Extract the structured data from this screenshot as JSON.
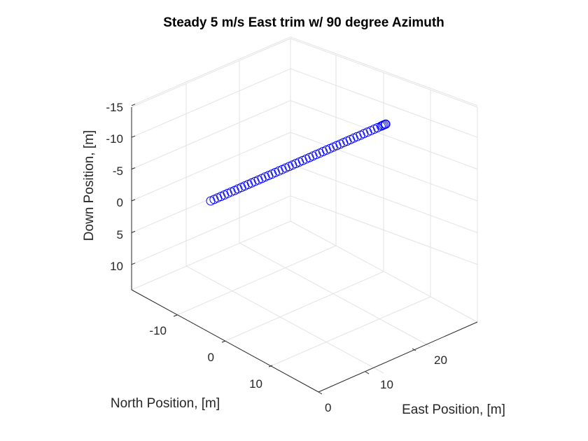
{
  "chart_data": {
    "type": "scatter",
    "projection": "3d",
    "title": "Steady 5 m/s East trim w/ 90 degree Azimuth",
    "xlabel": "North Position, [m]",
    "ylabel": "East Position, [m]",
    "zlabel": "Down Position, [m]",
    "z_axis_reversed": true,
    "grid": true,
    "north_ticks": [
      "-10",
      "0",
      "10"
    ],
    "east_ticks": [
      "0",
      "10",
      "20"
    ],
    "down_ticks": [
      "-15",
      "-10",
      "-5",
      "0",
      "5",
      "10"
    ],
    "marker": "circle",
    "color": "#0000ff",
    "series": [
      {
        "north": 0,
        "down": 0,
        "east": [
          0,
          0.5,
          1,
          1.5,
          2,
          2.5,
          3,
          3.5,
          4,
          4.5,
          5,
          5.5,
          6,
          6.5,
          7,
          7.5,
          8,
          8.5,
          9,
          9.5,
          10,
          10.5,
          11,
          11.5,
          12,
          12.5,
          13,
          13.5,
          14,
          14.5,
          15,
          15.5,
          16,
          16.5,
          17,
          17.5,
          18,
          18.5,
          19,
          19.5,
          20,
          20.5,
          21,
          21.5,
          22,
          22.5,
          23,
          23.5,
          24,
          24.5,
          25,
          25.2,
          25.4,
          25.6,
          25.7
        ]
      }
    ]
  }
}
